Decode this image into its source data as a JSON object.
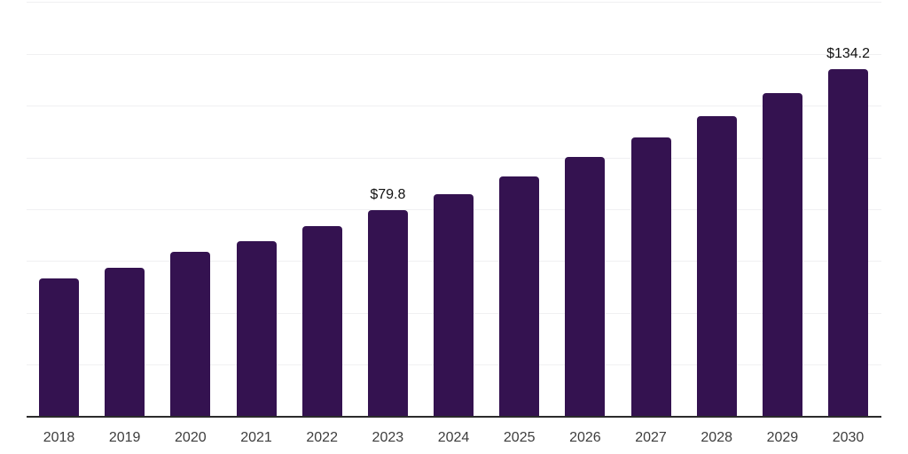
{
  "chart_data": {
    "type": "bar",
    "title": "",
    "xlabel": "",
    "ylabel": "",
    "categories": [
      "2018",
      "2019",
      "2020",
      "2021",
      "2022",
      "2023",
      "2024",
      "2025",
      "2026",
      "2027",
      "2028",
      "2029",
      "2030"
    ],
    "values": [
      53.4,
      57.5,
      63.7,
      67.8,
      73.6,
      79.8,
      86.0,
      92.8,
      100.3,
      107.9,
      116.1,
      125.0,
      134.2
    ],
    "data_labels": {
      "2023": "$79.8",
      "2030": "$134.2"
    },
    "ylim": [
      0,
      160
    ],
    "gridline_step": 20,
    "grid": "horizontal-only",
    "legend_position": "none",
    "y_axis_tick_labels_visible": false,
    "colors": {
      "bar": "#341250",
      "background": "#ffffff",
      "gridline": "#f0f0f2",
      "axis_line": "#2b2b2b",
      "tick_label": "#3d3d3d",
      "data_label": "#111111"
    }
  }
}
